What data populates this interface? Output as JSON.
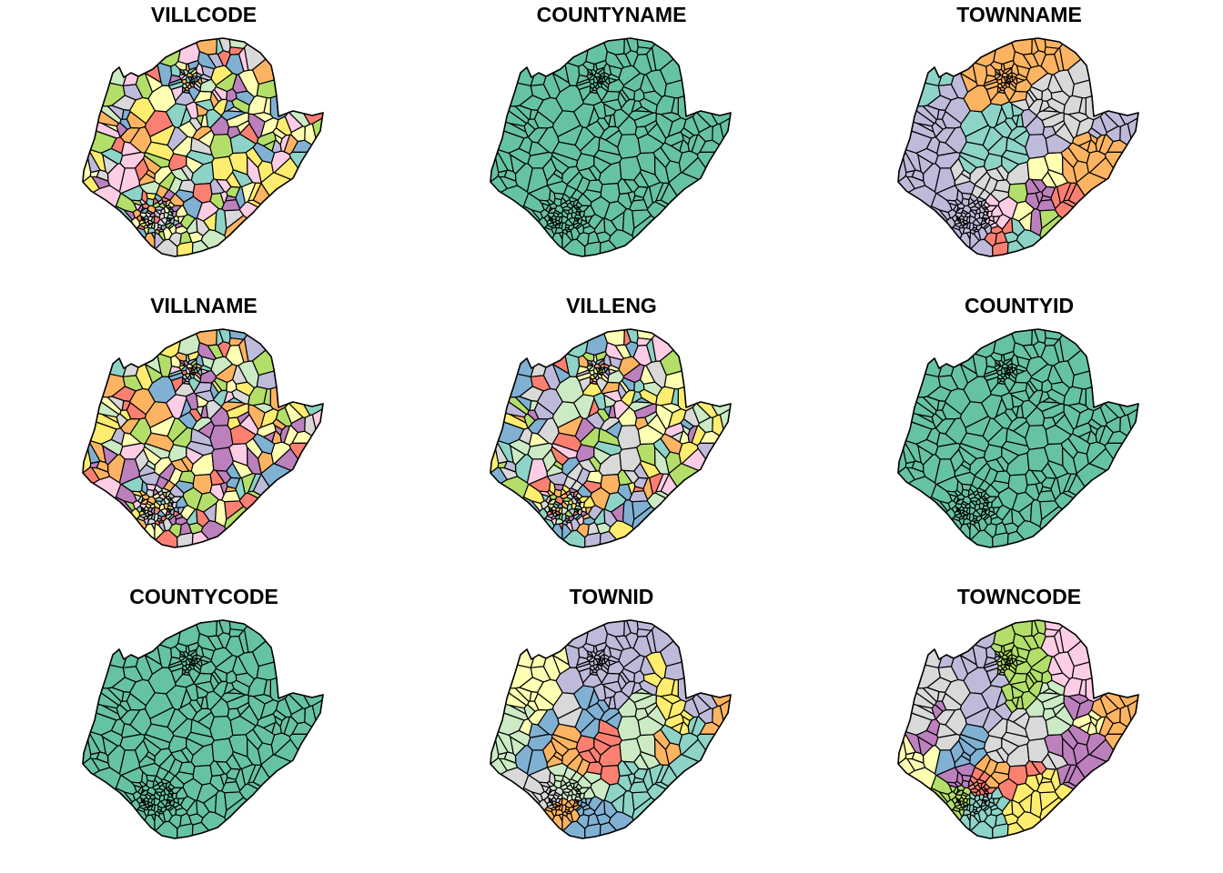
{
  "figure": {
    "panels": [
      {
        "title": "VILLCODE",
        "palette": [
          "#8DD3C7",
          "#FFFFB3",
          "#BEBADA",
          "#FB8072",
          "#80B1D3",
          "#FDB462",
          "#B3DE69",
          "#FCCDE5",
          "#D9D9D9",
          "#BC80BD",
          "#CCEBC5",
          "#FFED6F"
        ],
        "classes": "many",
        "seed": 11
      },
      {
        "title": "COUNTYNAME",
        "palette": [
          "#66C2A5"
        ],
        "classes": "single",
        "seed": 22
      },
      {
        "title": "TOWNNAME",
        "palette": [
          "#8DD3C7",
          "#FFFFB3",
          "#BEBADA",
          "#FB8072",
          "#80B1D3",
          "#FDB462",
          "#B3DE69",
          "#FCCDE5",
          "#D9D9D9",
          "#BC80BD"
        ],
        "classes": "grouped",
        "seed": 33
      },
      {
        "title": "VILLNAME",
        "palette": [
          "#8DD3C7",
          "#FFFFB3",
          "#BEBADA",
          "#FB8072",
          "#80B1D3",
          "#FDB462",
          "#B3DE69",
          "#FCCDE5",
          "#D9D9D9",
          "#BC80BD",
          "#CCEBC5",
          "#FFED6F"
        ],
        "classes": "many",
        "seed": 44
      },
      {
        "title": "VILLENG",
        "palette": [
          "#8DD3C7",
          "#FFFFB3",
          "#BEBADA",
          "#FB8072",
          "#80B1D3",
          "#FDB462",
          "#B3DE69",
          "#FCCDE5",
          "#D9D9D9",
          "#BC80BD",
          "#CCEBC5",
          "#FFED6F"
        ],
        "classes": "many",
        "seed": 55
      },
      {
        "title": "COUNTYID",
        "palette": [
          "#66C2A5"
        ],
        "classes": "single",
        "seed": 66
      },
      {
        "title": "COUNTYCODE",
        "palette": [
          "#66C2A5"
        ],
        "classes": "single",
        "seed": 77
      },
      {
        "title": "TOWNID",
        "palette": [
          "#8DD3C7",
          "#FFFFB3",
          "#BEBADA",
          "#FB8072",
          "#80B1D3",
          "#FDB462",
          "#B3DE69",
          "#FCCDE5",
          "#D9D9D9",
          "#BC80BD",
          "#CCEBC5",
          "#FFED6F"
        ],
        "classes": "grouped",
        "seed": 88
      },
      {
        "title": "TOWNCODE",
        "palette": [
          "#8DD3C7",
          "#FFFFB3",
          "#BEBADA",
          "#FB8072",
          "#80B1D3",
          "#FDB462",
          "#B3DE69",
          "#FCCDE5",
          "#D9D9D9",
          "#BC80BD",
          "#CCEBC5",
          "#FFED6F"
        ],
        "classes": "grouped",
        "seed": 99
      }
    ],
    "border_color": "#000000"
  }
}
